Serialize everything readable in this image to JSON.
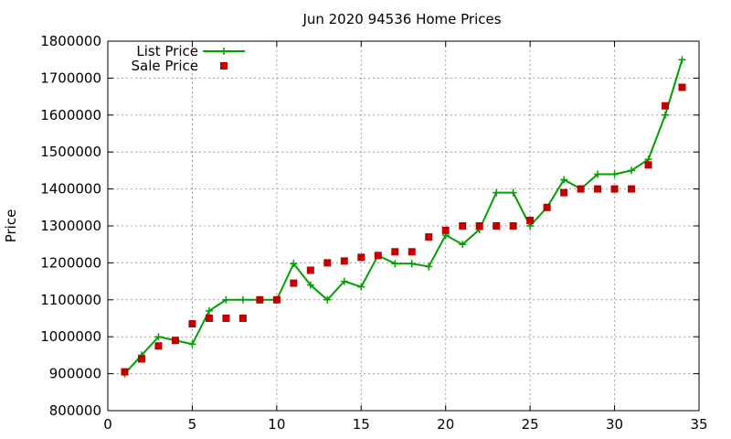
{
  "chart_data": {
    "type": "line",
    "title": "Jun 2020 94536 Home Prices",
    "xlabel": "",
    "ylabel": "Price",
    "xlim": [
      0,
      35
    ],
    "ylim": [
      800000,
      1800000
    ],
    "x_ticks": [
      0,
      5,
      10,
      15,
      20,
      25,
      30,
      35
    ],
    "y_ticks": [
      800000,
      900000,
      1000000,
      1100000,
      1200000,
      1300000,
      1400000,
      1500000,
      1600000,
      1700000,
      1800000
    ],
    "grid": true,
    "legend": "top-left",
    "x": [
      1,
      2,
      3,
      4,
      5,
      6,
      7,
      8,
      9,
      10,
      11,
      12,
      13,
      14,
      15,
      16,
      17,
      18,
      19,
      20,
      21,
      22,
      23,
      24,
      25,
      26,
      27,
      28,
      29,
      30,
      31,
      32,
      33,
      34
    ],
    "series": [
      {
        "name": "List Price",
        "style": "line-points",
        "color": "#00a000",
        "values": [
          900000,
          950000,
          1000000,
          990000,
          980000,
          1070000,
          1100000,
          1100000,
          1100000,
          1100000,
          1198000,
          1140000,
          1100000,
          1150000,
          1135000,
          1220000,
          1198000,
          1198000,
          1190000,
          1275000,
          1250000,
          1290000,
          1390000,
          1390000,
          1300000,
          1350000,
          1425000,
          1400000,
          1440000,
          1440000,
          1450000,
          1480000,
          1600000,
          1750000
        ]
      },
      {
        "name": "Sale Price",
        "style": "points",
        "color": "#c00000",
        "values": [
          905000,
          940000,
          975000,
          990000,
          1035000,
          1050000,
          1050000,
          1050000,
          1100000,
          1100000,
          1145000,
          1180000,
          1200000,
          1205000,
          1215000,
          1220000,
          1230000,
          1230000,
          1270000,
          1288000,
          1300000,
          1300000,
          1300000,
          1300000,
          1315000,
          1350000,
          1390000,
          1400000,
          1400000,
          1400000,
          1400000,
          1465000,
          1625000,
          1675000
        ]
      }
    ]
  }
}
